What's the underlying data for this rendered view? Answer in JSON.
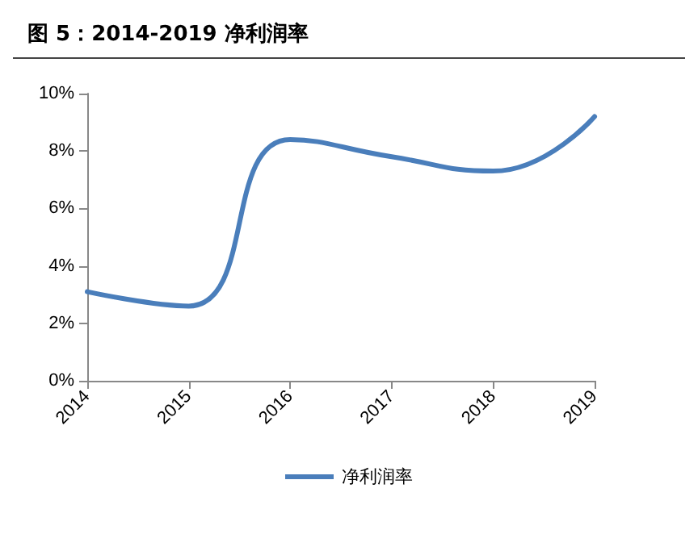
{
  "chart_data": {
    "type": "line",
    "title": "图 5：2014-2019 净利润率",
    "categories": [
      "2014",
      "2015",
      "2016",
      "2017",
      "2018",
      "2019"
    ],
    "series": [
      {
        "name": "净利润率",
        "color": "#4a7ebb",
        "values": [
          3.1,
          2.6,
          8.4,
          7.8,
          7.3,
          9.2
        ]
      }
    ],
    "ylim": [
      0,
      10
    ],
    "yticks": [
      {
        "value": 0,
        "label": "0%"
      },
      {
        "value": 2,
        "label": "2%"
      },
      {
        "value": 4,
        "label": "4%"
      },
      {
        "value": 6,
        "label": "6%"
      },
      {
        "value": 8,
        "label": "8%"
      },
      {
        "value": 10,
        "label": "10%"
      }
    ],
    "grid": false,
    "legend": "bottom",
    "marker": "none",
    "line_style": "solid"
  }
}
